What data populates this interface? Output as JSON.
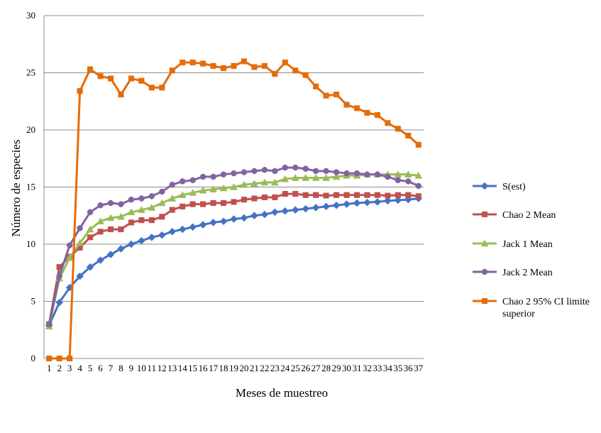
{
  "chart_data": {
    "type": "line",
    "title": "",
    "xlabel": "Meses de muestreo",
    "ylabel": "Número de especies",
    "ylim": [
      0,
      30
    ],
    "yticks": [
      0,
      5,
      10,
      15,
      20,
      25,
      30
    ],
    "grid": "horizontal",
    "legend_position": "right",
    "x": [
      1,
      2,
      3,
      4,
      5,
      6,
      7,
      8,
      9,
      10,
      11,
      12,
      13,
      14,
      15,
      16,
      17,
      18,
      19,
      20,
      21,
      22,
      23,
      24,
      25,
      26,
      27,
      28,
      29,
      30,
      31,
      32,
      33,
      34,
      35,
      36,
      37
    ],
    "series": [
      {
        "name": "S(est)",
        "color": "#4472C4",
        "marker": "diamond",
        "values": [
          2.9,
          4.9,
          6.2,
          7.2,
          8.0,
          8.6,
          9.1,
          9.6,
          10.0,
          10.3,
          10.6,
          10.8,
          11.1,
          11.3,
          11.5,
          11.7,
          11.9,
          12.0,
          12.2,
          12.3,
          12.5,
          12.6,
          12.8,
          12.9,
          13.0,
          13.1,
          13.2,
          13.3,
          13.4,
          13.5,
          13.6,
          13.65,
          13.7,
          13.8,
          13.85,
          13.9,
          14.0
        ]
      },
      {
        "name": "Chao 2 Mean",
        "color": "#C0504D",
        "marker": "square",
        "values": [
          3.0,
          8.0,
          8.9,
          9.7,
          10.6,
          11.1,
          11.3,
          11.3,
          11.9,
          12.1,
          12.1,
          12.4,
          13.0,
          13.3,
          13.5,
          13.5,
          13.6,
          13.6,
          13.7,
          13.9,
          14.0,
          14.1,
          14.1,
          14.4,
          14.4,
          14.3,
          14.3,
          14.25,
          14.3,
          14.3,
          14.3,
          14.3,
          14.3,
          14.25,
          14.3,
          14.3,
          14.2
        ]
      },
      {
        "name": "Jack 1 Mean",
        "color": "#9BBB59",
        "marker": "triangle",
        "values": [
          2.8,
          7.0,
          8.8,
          10.1,
          11.3,
          12.0,
          12.3,
          12.4,
          12.8,
          13.0,
          13.2,
          13.6,
          14.0,
          14.3,
          14.5,
          14.7,
          14.8,
          14.9,
          15.0,
          15.2,
          15.3,
          15.4,
          15.4,
          15.7,
          15.8,
          15.8,
          15.8,
          15.8,
          15.9,
          16.0,
          16.0,
          16.1,
          16.1,
          16.1,
          16.1,
          16.1,
          16.0
        ]
      },
      {
        "name": "Jack 2 Mean",
        "color": "#8064A2",
        "marker": "circle",
        "values": [
          3.0,
          7.2,
          9.9,
          11.4,
          12.8,
          13.4,
          13.6,
          13.5,
          13.9,
          14.0,
          14.2,
          14.6,
          15.2,
          15.5,
          15.6,
          15.9,
          15.9,
          16.1,
          16.2,
          16.3,
          16.4,
          16.5,
          16.4,
          16.7,
          16.7,
          16.6,
          16.4,
          16.4,
          16.3,
          16.2,
          16.2,
          16.1,
          16.1,
          15.9,
          15.6,
          15.5,
          15.1
        ]
      },
      {
        "name": "Chao 2 95% CI limite superior",
        "color": "#E46C0A",
        "marker": "square",
        "values": [
          0,
          0,
          0,
          23.4,
          25.3,
          24.7,
          24.5,
          23.1,
          24.5,
          24.3,
          23.7,
          23.7,
          25.2,
          25.9,
          25.9,
          25.8,
          25.6,
          25.4,
          25.6,
          26.0,
          25.5,
          25.6,
          24.9,
          25.9,
          25.2,
          24.8,
          23.8,
          23.0,
          23.1,
          22.2,
          21.9,
          21.5,
          21.3,
          20.6,
          20.1,
          19.5,
          18.7
        ]
      }
    ]
  }
}
